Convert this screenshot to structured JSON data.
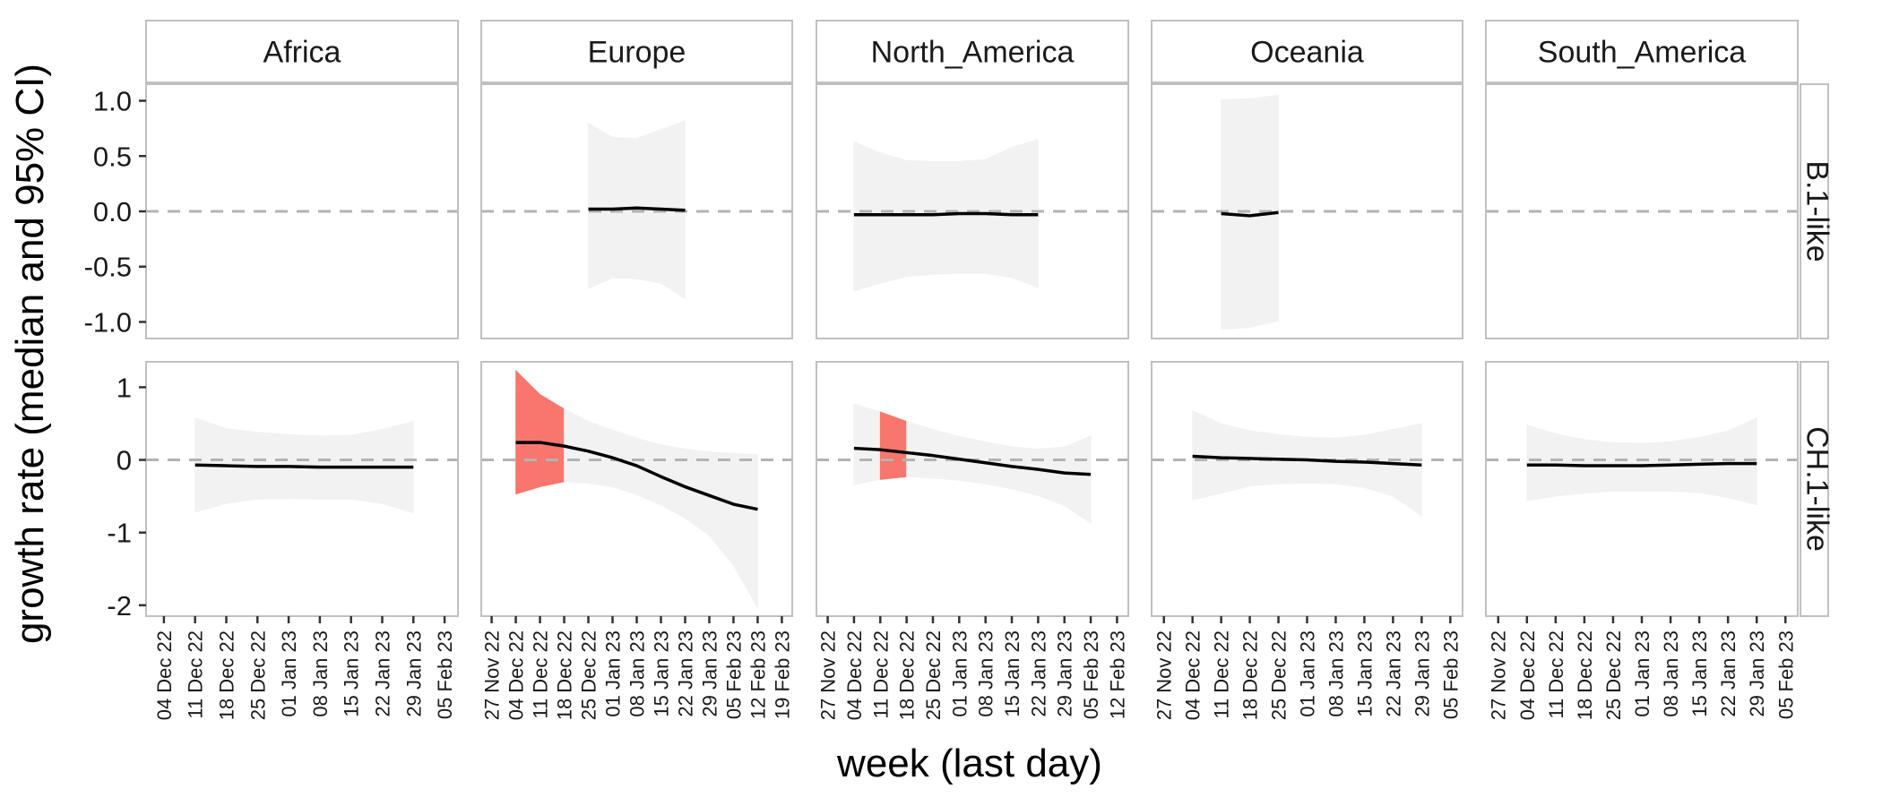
{
  "chart_data": {
    "type": "line",
    "title": "",
    "xlabel": "week (last day)",
    "ylabel": "growth rate (median and 95% CI)",
    "columns": [
      "Africa",
      "Europe",
      "North_America",
      "Oceania",
      "South_America"
    ],
    "rows": [
      "B.1-like",
      "CH.1-like"
    ],
    "facet_scales": "fixed x per column, free y per row",
    "reference_line": {
      "y": 0,
      "style": "dashed",
      "color": "#b3b3b3"
    },
    "colors": {
      "median": "#000000",
      "ci_band": "#f2f2f2",
      "ci_band_highlight": "#f8766d",
      "strip_bg": "#ffffff",
      "panel_border": "#c0c0c0"
    },
    "row_axes": [
      {
        "row": "B.1-like",
        "ylim": [
          -1.15,
          1.15
        ],
        "ticks": [
          1.0,
          0.5,
          0.0,
          -0.5,
          -1.0
        ],
        "tick_labels": [
          "1.0",
          "0.5",
          "0.0",
          "-0.5",
          "-1.0"
        ]
      },
      {
        "row": "CH.1-like",
        "ylim": [
          -2.15,
          1.35
        ],
        "ticks": [
          1,
          0,
          -1,
          -2
        ],
        "tick_labels": [
          "1",
          "0",
          "-1",
          "-2"
        ]
      }
    ],
    "column_axes": [
      {
        "column": "Africa",
        "xlim": [
          "2022-11-30",
          "2023-02-08"
        ],
        "ticks": [
          "2022-12-04",
          "2022-12-11",
          "2022-12-18",
          "2022-12-25",
          "2023-01-01",
          "2023-01-08",
          "2023-01-15",
          "2023-01-22",
          "2023-01-29",
          "2023-02-05"
        ],
        "tick_labels": [
          "04 Dec 22",
          "11 Dec 22",
          "18 Dec 22",
          "25 Dec 22",
          "01 Jan 23",
          "08 Jan 23",
          "15 Jan 23",
          "22 Jan 23",
          "29 Jan 23",
          "05 Feb 23"
        ]
      },
      {
        "column": "Europe",
        "xlim": [
          "2022-11-24",
          "2023-02-22"
        ],
        "ticks": [
          "2022-11-27",
          "2022-12-04",
          "2022-12-11",
          "2022-12-18",
          "2022-12-25",
          "2023-01-01",
          "2023-01-08",
          "2023-01-15",
          "2023-01-22",
          "2023-01-29",
          "2023-02-05",
          "2023-02-12",
          "2023-02-19"
        ],
        "tick_labels": [
          "27 Nov 22",
          "04 Dec 22",
          "11 Dec 22",
          "18 Dec 22",
          "25 Dec 22",
          "01 Jan 23",
          "08 Jan 23",
          "15 Jan 23",
          "22 Jan 23",
          "29 Jan 23",
          "05 Feb 23",
          "12 Feb 23",
          "19 Feb 23"
        ]
      },
      {
        "column": "North_America",
        "xlim": [
          "2022-11-24",
          "2023-02-15"
        ],
        "ticks": [
          "2022-11-27",
          "2022-12-04",
          "2022-12-11",
          "2022-12-18",
          "2022-12-25",
          "2023-01-01",
          "2023-01-08",
          "2023-01-15",
          "2023-01-22",
          "2023-01-29",
          "2023-02-05",
          "2023-02-12"
        ],
        "tick_labels": [
          "27 Nov 22",
          "04 Dec 22",
          "11 Dec 22",
          "18 Dec 22",
          "25 Dec 22",
          "01 Jan 23",
          "08 Jan 23",
          "15 Jan 23",
          "22 Jan 23",
          "29 Jan 23",
          "05 Feb 23",
          "12 Feb 23"
        ]
      },
      {
        "column": "Oceania",
        "xlim": [
          "2022-11-24",
          "2023-02-08"
        ],
        "ticks": [
          "2022-11-27",
          "2022-12-04",
          "2022-12-11",
          "2022-12-18",
          "2022-12-25",
          "2023-01-01",
          "2023-01-08",
          "2023-01-15",
          "2023-01-22",
          "2023-01-29",
          "2023-02-05"
        ],
        "tick_labels": [
          "27 Nov 22",
          "04 Dec 22",
          "11 Dec 22",
          "18 Dec 22",
          "25 Dec 22",
          "01 Jan 23",
          "08 Jan 23",
          "15 Jan 23",
          "22 Jan 23",
          "29 Jan 23",
          "05 Feb 23"
        ]
      },
      {
        "column": "South_America",
        "xlim": [
          "2022-11-24",
          "2023-02-08"
        ],
        "ticks": [
          "2022-11-27",
          "2022-12-04",
          "2022-12-11",
          "2022-12-18",
          "2022-12-25",
          "2023-01-01",
          "2023-01-08",
          "2023-01-15",
          "2023-01-22",
          "2023-01-29",
          "2023-02-05"
        ],
        "tick_labels": [
          "27 Nov 22",
          "04 Dec 22",
          "11 Dec 22",
          "18 Dec 22",
          "25 Dec 22",
          "01 Jan 23",
          "08 Jan 23",
          "15 Jan 23",
          "22 Jan 23",
          "29 Jan 23",
          "05 Feb 23"
        ]
      }
    ],
    "series": [
      {
        "column": "Africa",
        "row": "B.1-like",
        "points": []
      },
      {
        "column": "Europe",
        "row": "B.1-like",
        "points": [
          {
            "x": "2022-12-25",
            "median": 0.02,
            "lower": -0.7,
            "upper": 0.8,
            "highlight": false
          },
          {
            "x": "2023-01-01",
            "median": 0.02,
            "lower": -0.6,
            "upper": 0.67,
            "highlight": false
          },
          {
            "x": "2023-01-08",
            "median": 0.03,
            "lower": -0.61,
            "upper": 0.66,
            "highlight": false
          },
          {
            "x": "2023-01-15",
            "median": 0.02,
            "lower": -0.65,
            "upper": 0.74,
            "highlight": false
          },
          {
            "x": "2023-01-22",
            "median": 0.01,
            "lower": -0.79,
            "upper": 0.82,
            "highlight": false
          }
        ]
      },
      {
        "column": "North_America",
        "row": "B.1-like",
        "points": [
          {
            "x": "2022-12-04",
            "median": -0.03,
            "lower": -0.72,
            "upper": 0.63,
            "highlight": false
          },
          {
            "x": "2022-12-11",
            "median": -0.03,
            "lower": -0.65,
            "upper": 0.53,
            "highlight": false
          },
          {
            "x": "2022-12-18",
            "median": -0.03,
            "lower": -0.59,
            "upper": 0.46,
            "highlight": false
          },
          {
            "x": "2022-12-25",
            "median": -0.03,
            "lower": -0.57,
            "upper": 0.45,
            "highlight": false
          },
          {
            "x": "2023-01-01",
            "median": -0.02,
            "lower": -0.56,
            "upper": 0.45,
            "highlight": false
          },
          {
            "x": "2023-01-08",
            "median": -0.02,
            "lower": -0.56,
            "upper": 0.47,
            "highlight": false
          },
          {
            "x": "2023-01-15",
            "median": -0.03,
            "lower": -0.6,
            "upper": 0.58,
            "highlight": false
          },
          {
            "x": "2023-01-22",
            "median": -0.03,
            "lower": -0.69,
            "upper": 0.65,
            "highlight": false
          }
        ]
      },
      {
        "column": "Oceania",
        "row": "B.1-like",
        "points": [
          {
            "x": "2022-12-11",
            "median": -0.02,
            "lower": -1.07,
            "upper": 1.01,
            "highlight": false
          },
          {
            "x": "2022-12-18",
            "median": -0.04,
            "lower": -1.05,
            "upper": 1.02,
            "highlight": false
          },
          {
            "x": "2022-12-25",
            "median": -0.01,
            "lower": -0.99,
            "upper": 1.05,
            "highlight": false
          }
        ]
      },
      {
        "column": "South_America",
        "row": "B.1-like",
        "points": []
      },
      {
        "column": "Africa",
        "row": "CH.1-like",
        "points": [
          {
            "x": "2022-12-11",
            "median": -0.07,
            "lower": -0.72,
            "upper": 0.58,
            "highlight": false
          },
          {
            "x": "2022-12-18",
            "median": -0.08,
            "lower": -0.6,
            "upper": 0.43,
            "highlight": false
          },
          {
            "x": "2022-12-25",
            "median": -0.09,
            "lower": -0.54,
            "upper": 0.38,
            "highlight": false
          },
          {
            "x": "2023-01-01",
            "median": -0.09,
            "lower": -0.53,
            "upper": 0.35,
            "highlight": false
          },
          {
            "x": "2023-01-08",
            "median": -0.1,
            "lower": -0.54,
            "upper": 0.33,
            "highlight": false
          },
          {
            "x": "2023-01-15",
            "median": -0.1,
            "lower": -0.54,
            "upper": 0.34,
            "highlight": false
          },
          {
            "x": "2023-01-22",
            "median": -0.1,
            "lower": -0.6,
            "upper": 0.42,
            "highlight": false
          },
          {
            "x": "2023-01-29",
            "median": -0.1,
            "lower": -0.73,
            "upper": 0.53,
            "highlight": false
          }
        ]
      },
      {
        "column": "Europe",
        "row": "CH.1-like",
        "points": [
          {
            "x": "2022-12-04",
            "median": 0.24,
            "lower": -0.47,
            "upper": 1.23,
            "highlight": true
          },
          {
            "x": "2022-12-11",
            "median": 0.24,
            "lower": -0.37,
            "upper": 0.9,
            "highlight": true
          },
          {
            "x": "2022-12-18",
            "median": 0.19,
            "lower": -0.3,
            "upper": 0.7,
            "highlight": true
          },
          {
            "x": "2022-12-25",
            "median": 0.12,
            "lower": -0.32,
            "upper": 0.53,
            "highlight": false
          },
          {
            "x": "2023-01-01",
            "median": 0.03,
            "lower": -0.37,
            "upper": 0.41,
            "highlight": false
          },
          {
            "x": "2023-01-08",
            "median": -0.08,
            "lower": -0.48,
            "upper": 0.3,
            "highlight": false
          },
          {
            "x": "2023-01-15",
            "median": -0.23,
            "lower": -0.62,
            "upper": 0.21,
            "highlight": false
          },
          {
            "x": "2023-01-22",
            "median": -0.37,
            "lower": -0.8,
            "upper": 0.15,
            "highlight": false
          },
          {
            "x": "2023-01-29",
            "median": -0.49,
            "lower": -1.04,
            "upper": 0.11,
            "highlight": false
          },
          {
            "x": "2023-02-05",
            "median": -0.61,
            "lower": -1.45,
            "upper": 0.09,
            "highlight": false
          },
          {
            "x": "2023-02-12",
            "median": -0.68,
            "lower": -2.03,
            "upper": 0.07,
            "highlight": false
          }
        ]
      },
      {
        "column": "North_America",
        "row": "CH.1-like",
        "points": [
          {
            "x": "2022-12-04",
            "median": 0.16,
            "lower": -0.34,
            "upper": 0.77,
            "highlight": false
          },
          {
            "x": "2022-12-11",
            "median": 0.14,
            "lower": -0.27,
            "upper": 0.66,
            "highlight": true
          },
          {
            "x": "2022-12-18",
            "median": 0.1,
            "lower": -0.23,
            "upper": 0.53,
            "highlight": true
          },
          {
            "x": "2022-12-25",
            "median": 0.06,
            "lower": -0.25,
            "upper": 0.42,
            "highlight": false
          },
          {
            "x": "2023-01-01",
            "median": 0.01,
            "lower": -0.28,
            "upper": 0.32,
            "highlight": false
          },
          {
            "x": "2023-01-08",
            "median": -0.04,
            "lower": -0.33,
            "upper": 0.25,
            "highlight": false
          },
          {
            "x": "2023-01-15",
            "median": -0.09,
            "lower": -0.4,
            "upper": 0.18,
            "highlight": false
          },
          {
            "x": "2023-01-22",
            "median": -0.13,
            "lower": -0.49,
            "upper": 0.15,
            "highlight": false
          },
          {
            "x": "2023-01-29",
            "median": -0.18,
            "lower": -0.63,
            "upper": 0.18,
            "highlight": false
          },
          {
            "x": "2023-02-05",
            "median": -0.2,
            "lower": -0.87,
            "upper": 0.33,
            "highlight": false
          }
        ]
      },
      {
        "column": "Oceania",
        "row": "CH.1-like",
        "points": [
          {
            "x": "2022-12-04",
            "median": 0.05,
            "lower": -0.55,
            "upper": 0.68,
            "highlight": false
          },
          {
            "x": "2022-12-11",
            "median": 0.03,
            "lower": -0.46,
            "upper": 0.5,
            "highlight": false
          },
          {
            "x": "2022-12-18",
            "median": 0.02,
            "lower": -0.36,
            "upper": 0.4,
            "highlight": false
          },
          {
            "x": "2022-12-25",
            "median": 0.01,
            "lower": -0.33,
            "upper": 0.35,
            "highlight": false
          },
          {
            "x": "2023-01-01",
            "median": 0.0,
            "lower": -0.32,
            "upper": 0.31,
            "highlight": false
          },
          {
            "x": "2023-01-08",
            "median": -0.02,
            "lower": -0.33,
            "upper": 0.3,
            "highlight": false
          },
          {
            "x": "2023-01-15",
            "median": -0.03,
            "lower": -0.38,
            "upper": 0.34,
            "highlight": false
          },
          {
            "x": "2023-01-22",
            "median": -0.05,
            "lower": -0.5,
            "upper": 0.42,
            "highlight": false
          },
          {
            "x": "2023-01-29",
            "median": -0.07,
            "lower": -0.77,
            "upper": 0.5,
            "highlight": false
          }
        ]
      },
      {
        "column": "South_America",
        "row": "CH.1-like",
        "points": [
          {
            "x": "2022-12-04",
            "median": -0.07,
            "lower": -0.56,
            "upper": 0.48,
            "highlight": false
          },
          {
            "x": "2022-12-11",
            "median": -0.07,
            "lower": -0.5,
            "upper": 0.36,
            "highlight": false
          },
          {
            "x": "2022-12-18",
            "median": -0.08,
            "lower": -0.46,
            "upper": 0.28,
            "highlight": false
          },
          {
            "x": "2022-12-25",
            "median": -0.08,
            "lower": -0.43,
            "upper": 0.24,
            "highlight": false
          },
          {
            "x": "2023-01-01",
            "median": -0.08,
            "lower": -0.43,
            "upper": 0.23,
            "highlight": false
          },
          {
            "x": "2023-01-08",
            "median": -0.07,
            "lower": -0.43,
            "upper": 0.25,
            "highlight": false
          },
          {
            "x": "2023-01-15",
            "median": -0.06,
            "lower": -0.45,
            "upper": 0.31,
            "highlight": false
          },
          {
            "x": "2023-01-22",
            "median": -0.05,
            "lower": -0.52,
            "upper": 0.4,
            "highlight": false
          },
          {
            "x": "2023-01-29",
            "median": -0.05,
            "lower": -0.62,
            "upper": 0.58,
            "highlight": false
          }
        ]
      }
    ]
  }
}
